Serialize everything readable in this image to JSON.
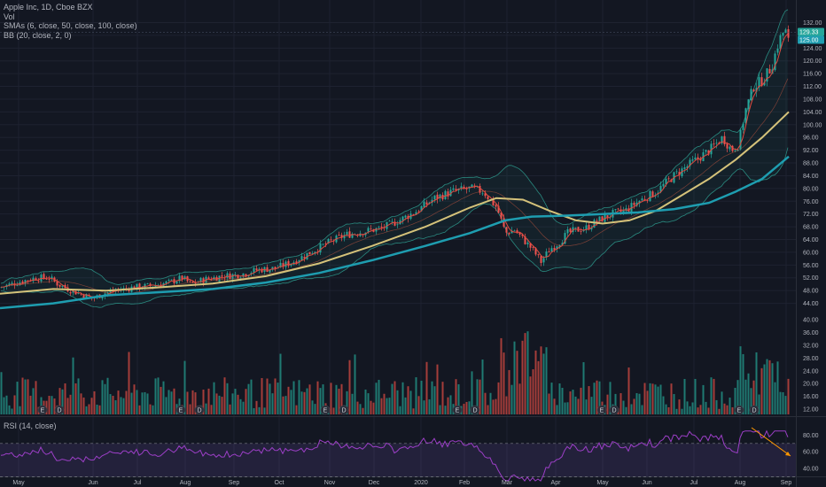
{
  "legend": {
    "title": "Apple Inc, 1D, Cboe BZX",
    "vol": "Vol",
    "smas": "SMAs (6, close, 50, close, 100, close)",
    "bb": "BB (20, close, 2, 0)",
    "rsi": "RSI (14, close)"
  },
  "price_badges": [
    "129.33",
    "125.00"
  ],
  "earnings_marker": "E",
  "dividend_marker": "D",
  "chart_data": [
    {
      "type": "candlestick",
      "title": "Apple Inc, 1D, Cboe BZX",
      "x_ticks": [
        "May",
        "Jun",
        "Jul",
        "Aug",
        "Sep",
        "Oct",
        "Nov",
        "Dec",
        "2020",
        "Feb",
        "Mar",
        "Apr",
        "May",
        "Jun",
        "Jul",
        "Aug",
        "Sep"
      ],
      "y_ticks": [
        132,
        128,
        124,
        120,
        116,
        112,
        108,
        104,
        100,
        96,
        92,
        88,
        84,
        80,
        76,
        72,
        68,
        64,
        60,
        56,
        52,
        48,
        44
      ],
      "ylim": [
        42,
        136
      ],
      "close_path": [
        [
          0,
          49
        ],
        [
          12,
          50
        ],
        [
          25,
          51
        ],
        [
          40,
          52
        ],
        [
          55,
          52
        ],
        [
          65,
          50
        ],
        [
          80,
          48
        ],
        [
          95,
          46.5
        ],
        [
          105,
          45.5
        ],
        [
          115,
          47
        ],
        [
          130,
          48
        ],
        [
          150,
          49
        ],
        [
          170,
          49.5
        ],
        [
          190,
          50.5
        ],
        [
          205,
          52
        ],
        [
          215,
          50
        ],
        [
          230,
          51.5
        ],
        [
          250,
          52.5
        ],
        [
          270,
          53
        ],
        [
          290,
          54.5
        ],
        [
          310,
          55
        ],
        [
          330,
          57
        ],
        [
          350,
          60
        ],
        [
          370,
          63
        ],
        [
          390,
          65.5
        ],
        [
          410,
          66.5
        ],
        [
          430,
          67.5
        ],
        [
          450,
          70
        ],
        [
          470,
          73
        ],
        [
          490,
          77
        ],
        [
          510,
          79
        ],
        [
          530,
          80
        ],
        [
          545,
          79
        ],
        [
          560,
          74
        ],
        [
          570,
          66
        ],
        [
          580,
          67
        ],
        [
          590,
          64
        ],
        [
          600,
          61
        ],
        [
          610,
          57
        ],
        [
          620,
          61
        ],
        [
          630,
          63
        ],
        [
          640,
          66
        ],
        [
          650,
          67
        ],
        [
          660,
          67.5
        ],
        [
          675,
          70
        ],
        [
          690,
          72
        ],
        [
          705,
          73
        ],
        [
          720,
          76
        ],
        [
          740,
          79
        ],
        [
          760,
          84
        ],
        [
          780,
          88
        ],
        [
          800,
          92
        ],
        [
          815,
          96
        ],
        [
          825,
          92
        ],
        [
          833,
          94
        ],
        [
          840,
          104
        ],
        [
          850,
          112
        ],
        [
          860,
          114
        ],
        [
          870,
          118
        ],
        [
          878,
          126
        ],
        [
          885,
          130
        ],
        [
          890,
          125
        ]
      ],
      "sma_50": [
        [
          0,
          47
        ],
        [
          60,
          48.5
        ],
        [
          120,
          48
        ],
        [
          180,
          49
        ],
        [
          240,
          50.2
        ],
        [
          300,
          52.5
        ],
        [
          360,
          56.5
        ],
        [
          420,
          62
        ],
        [
          480,
          68
        ],
        [
          530,
          74
        ],
        [
          560,
          77
        ],
        [
          590,
          76.5
        ],
        [
          620,
          73
        ],
        [
          650,
          70
        ],
        [
          680,
          69
        ],
        [
          710,
          70
        ],
        [
          740,
          73
        ],
        [
          770,
          78
        ],
        [
          800,
          83
        ],
        [
          830,
          89
        ],
        [
          860,
          96
        ],
        [
          890,
          104
        ]
      ],
      "sma_100": [
        [
          0,
          42.5
        ],
        [
          60,
          44
        ],
        [
          120,
          46.5
        ],
        [
          180,
          47.5
        ],
        [
          240,
          48.5
        ],
        [
          300,
          50.5
        ],
        [
          360,
          53.5
        ],
        [
          420,
          57.5
        ],
        [
          480,
          62
        ],
        [
          530,
          66
        ],
        [
          570,
          70
        ],
        [
          600,
          71.2
        ],
        [
          640,
          71.5
        ],
        [
          680,
          72
        ],
        [
          720,
          72.5
        ],
        [
          760,
          73.5
        ],
        [
          800,
          75.5
        ],
        [
          830,
          79
        ],
        [
          860,
          83
        ],
        [
          890,
          90
        ]
      ],
      "volume_ticks": [
        40,
        36,
        32,
        28,
        24,
        20,
        16,
        12
      ],
      "rsi_ticks": [
        80,
        60,
        40
      ],
      "rsi_bands": [
        70,
        30
      ]
    }
  ]
}
